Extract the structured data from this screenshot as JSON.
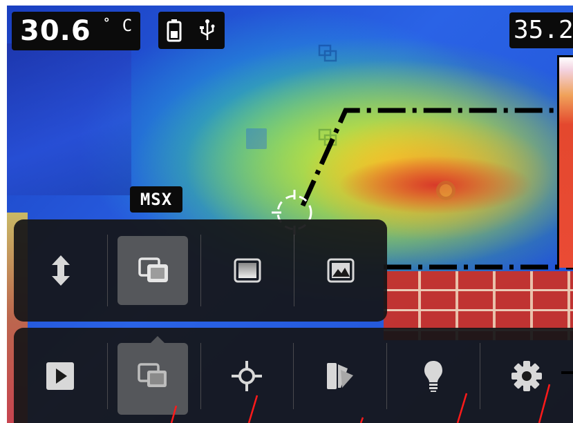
{
  "temperature": {
    "value": "30.6",
    "degree": "°",
    "unit": "C"
  },
  "status": {
    "battery_icon": "battery-icon",
    "usb_icon": "usb-icon"
  },
  "scale": {
    "max_value": "35.2"
  },
  "overlay": {
    "mode_label": "MSX"
  },
  "image_mode_menu": {
    "items": [
      {
        "icon": "adjust-vertical-icon",
        "selected": false
      },
      {
        "icon": "picture-in-picture-icon",
        "selected": true
      },
      {
        "icon": "thermal-image-icon",
        "selected": false
      },
      {
        "icon": "visual-image-icon",
        "selected": false
      }
    ]
  },
  "main_toolbar": {
    "items": [
      {
        "icon": "play-icon",
        "selected": false
      },
      {
        "icon": "image-mode-icon",
        "selected": true
      },
      {
        "icon": "crosshair-icon",
        "selected": false
      },
      {
        "icon": "color-palette-icon",
        "selected": false
      },
      {
        "icon": "lamp-icon",
        "selected": false
      },
      {
        "icon": "gear-icon",
        "selected": false
      }
    ]
  },
  "colors": {
    "menu_bg": "#161618",
    "selected_bg": "#55575b",
    "icon": "#d8d8d8",
    "annotation": "#ff1a1a"
  }
}
